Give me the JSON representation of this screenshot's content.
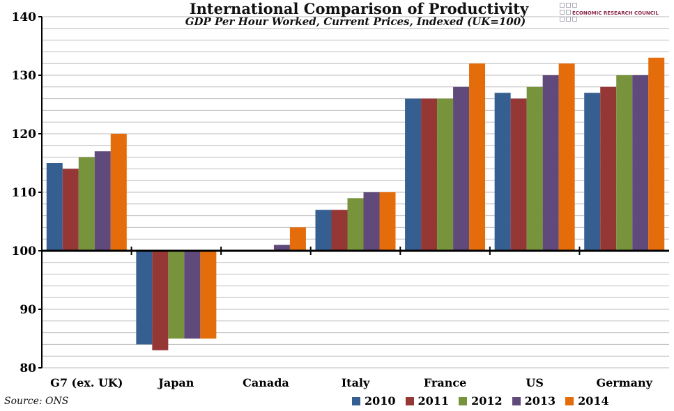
{
  "chart_data": {
    "type": "bar",
    "title": "International Comparison of Productivity",
    "subtitle": "GDP Per Hour Worked, Current Prices, Indexed (UK=100)",
    "categories": [
      "G7 (ex. UK)",
      "Japan",
      "Canada",
      "Italy",
      "France",
      "US",
      "Germany"
    ],
    "baseline": 100,
    "ylim": [
      80,
      140
    ],
    "yticks": [
      "80",
      "90",
      "100",
      "110",
      "120",
      "130",
      "140"
    ],
    "grid": true,
    "legend_position": "bottom-right",
    "series": [
      {
        "name": "2010",
        "color": "#365f91",
        "values": [
          115,
          84,
          100,
          107,
          126,
          127,
          127
        ]
      },
      {
        "name": "2011",
        "color": "#953735",
        "values": [
          114,
          83,
          100,
          107,
          126,
          126,
          128
        ]
      },
      {
        "name": "2012",
        "color": "#77933c",
        "values": [
          116,
          85,
          100,
          109,
          126,
          128,
          130
        ]
      },
      {
        "name": "2013",
        "color": "#604a7b",
        "values": [
          117,
          85,
          101,
          110,
          128,
          130,
          130
        ]
      },
      {
        "name": "2014",
        "color": "#e46c0a",
        "values": [
          120,
          85,
          104,
          110,
          132,
          132,
          133
        ]
      }
    ]
  },
  "source": "Source: ONS",
  "logo_text": "ECONOMIC RESEARCH COUNCIL"
}
